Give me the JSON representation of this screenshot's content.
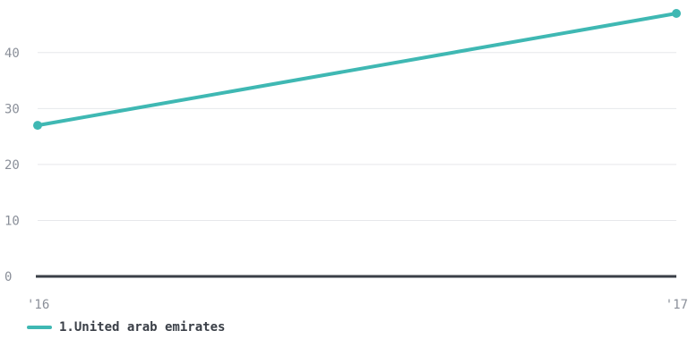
{
  "chart_data": {
    "type": "line",
    "x": [
      "'16",
      "'17"
    ],
    "series": [
      {
        "name": "1.United arab emirates",
        "values": [
          27,
          47
        ],
        "color": "#3fb8b3"
      }
    ],
    "yticks": [
      0,
      10,
      20,
      30,
      40
    ],
    "ylim": [
      0,
      47
    ],
    "grid": true,
    "legend": "bottom-left",
    "title": "",
    "xlabel": "",
    "ylabel": ""
  }
}
